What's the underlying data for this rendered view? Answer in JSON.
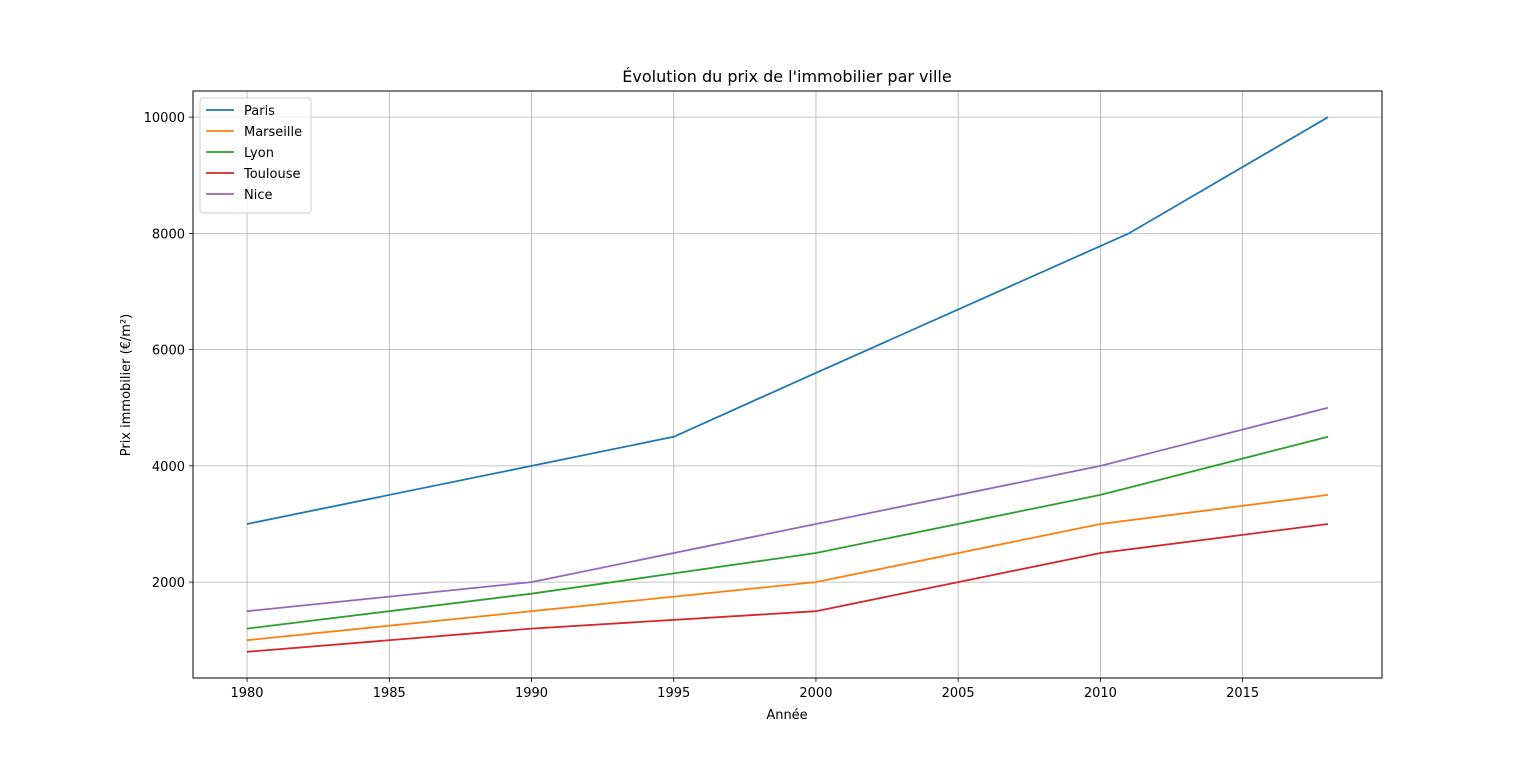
{
  "chart_data": {
    "type": "line",
    "title": "Évolution du prix de l'immobilier par ville",
    "xlabel": "Année",
    "ylabel": "Prix immobilier (€/m²)",
    "xlim": [
      1978.1,
      2019.9
    ],
    "ylim": [
      350,
      10450
    ],
    "x_ticks": [
      1980,
      1985,
      1990,
      1995,
      2000,
      2005,
      2010,
      2015
    ],
    "y_ticks": [
      2000,
      4000,
      6000,
      8000,
      10000
    ],
    "grid": true,
    "legend_position": "upper-left",
    "series": [
      {
        "name": "Paris",
        "color": "#1f77b4",
        "points": [
          [
            1980,
            3000
          ],
          [
            1990,
            4000
          ],
          [
            1995,
            4500
          ],
          [
            2000,
            5600
          ],
          [
            2011,
            8000
          ],
          [
            2018,
            10000
          ]
        ]
      },
      {
        "name": "Marseille",
        "color": "#ff7f0e",
        "points": [
          [
            1980,
            1000
          ],
          [
            1990,
            1500
          ],
          [
            2000,
            2000
          ],
          [
            2010,
            3000
          ],
          [
            2018,
            3500
          ]
        ]
      },
      {
        "name": "Lyon",
        "color": "#2ca02c",
        "points": [
          [
            1980,
            1200
          ],
          [
            1990,
            1800
          ],
          [
            1995,
            2150
          ],
          [
            2000,
            2500
          ],
          [
            2010,
            3500
          ],
          [
            2018,
            4500
          ]
        ]
      },
      {
        "name": "Toulouse",
        "color": "#d62728",
        "points": [
          [
            1980,
            800
          ],
          [
            1990,
            1200
          ],
          [
            2000,
            1500
          ],
          [
            2005,
            2000
          ],
          [
            2010,
            2500
          ],
          [
            2018,
            3000
          ]
        ]
      },
      {
        "name": "Nice",
        "color": "#9467bd",
        "points": [
          [
            1980,
            1500
          ],
          [
            1990,
            2000
          ],
          [
            2000,
            3000
          ],
          [
            2010,
            4000
          ],
          [
            2018,
            5000
          ]
        ]
      }
    ]
  }
}
